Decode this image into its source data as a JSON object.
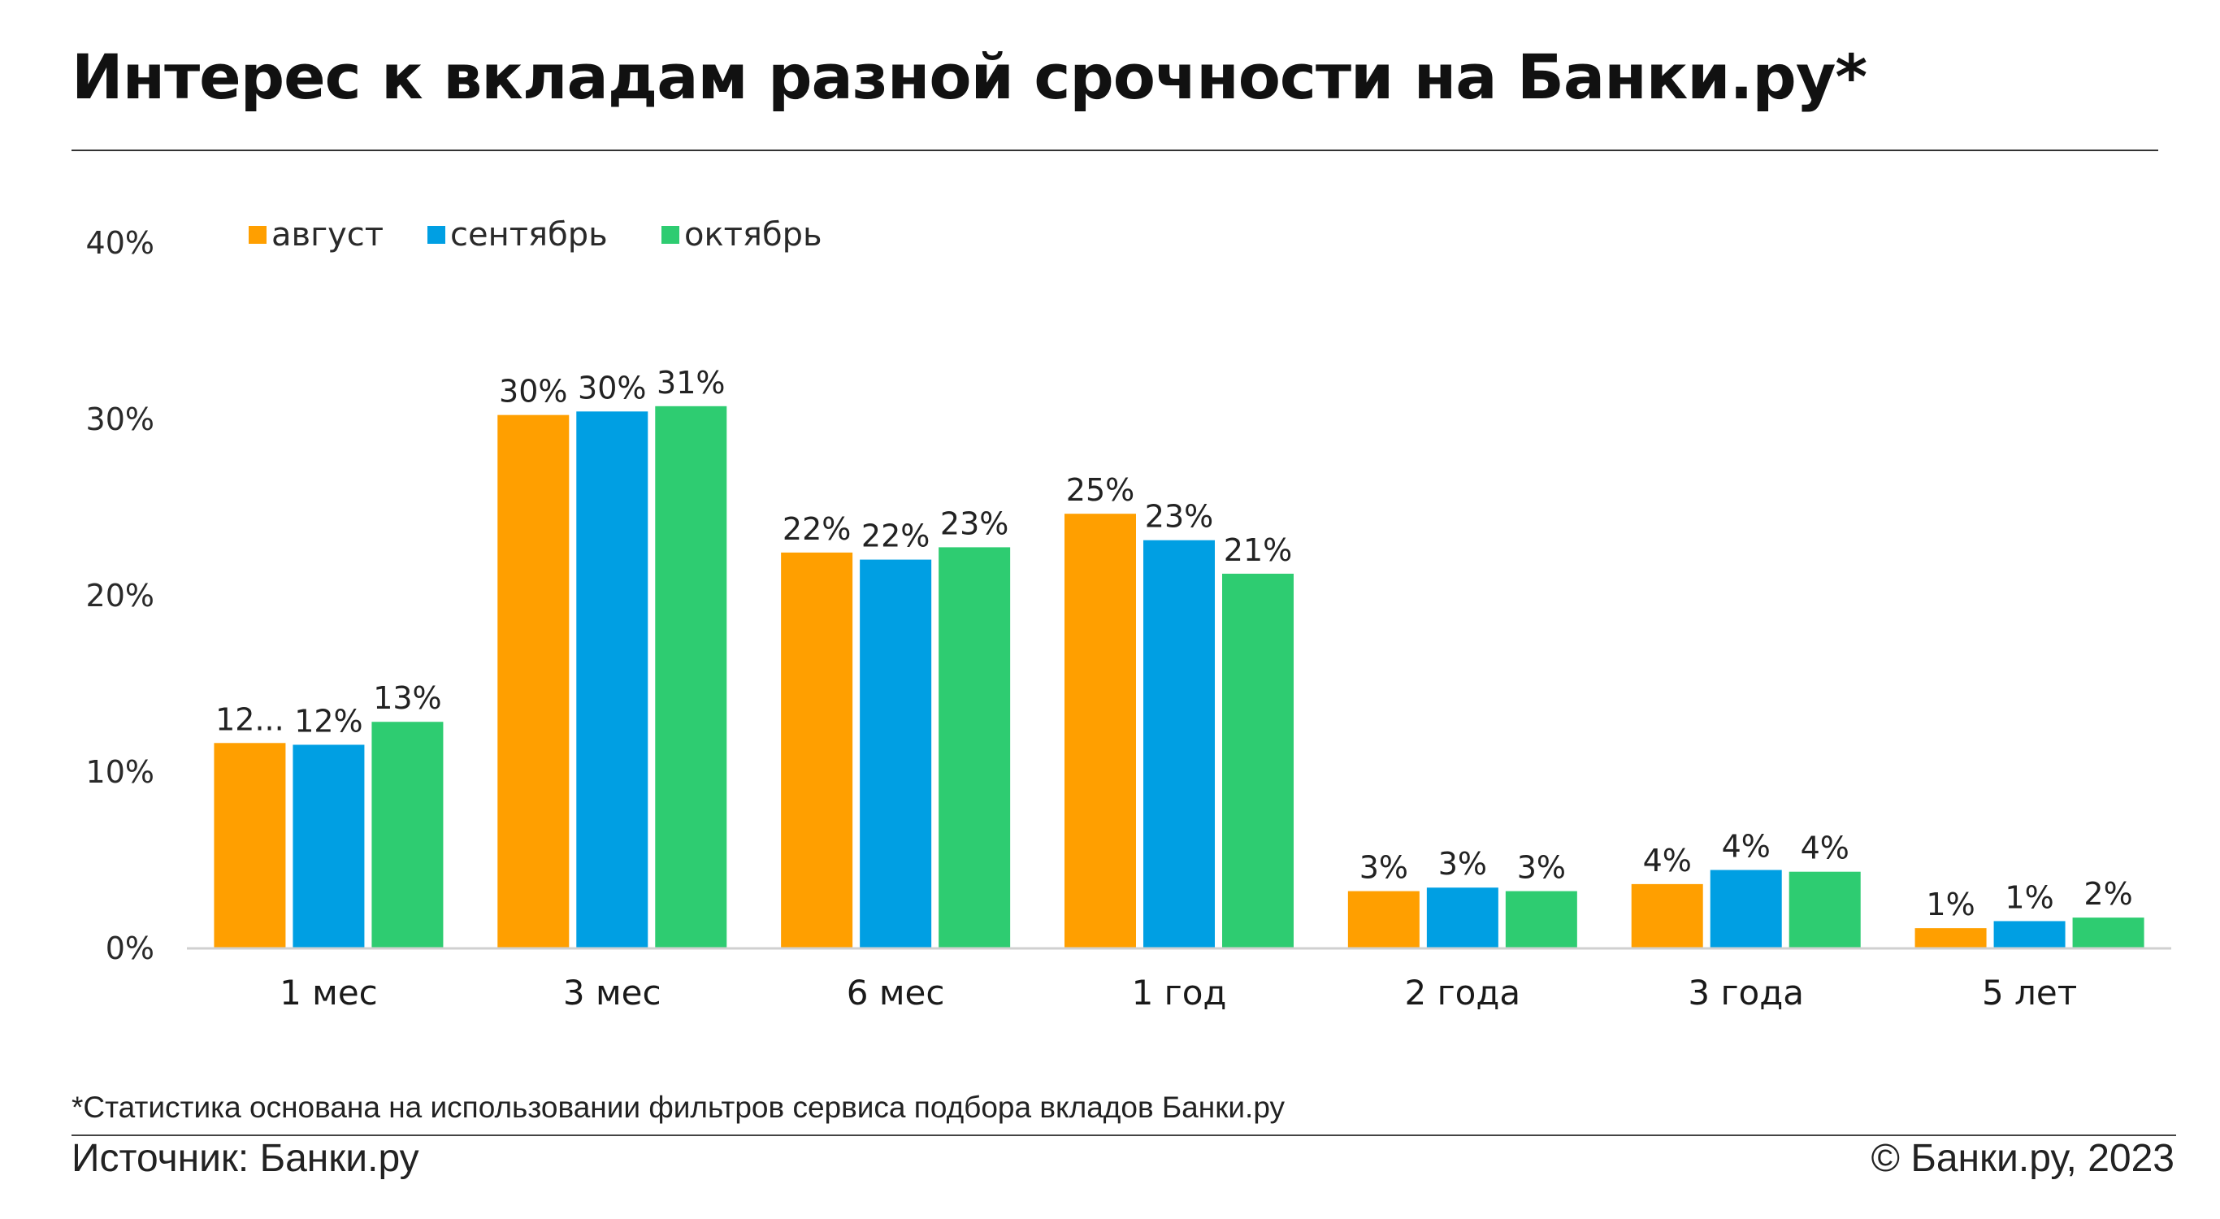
{
  "header": {
    "title": "Интерес к вкладам разной срочности на Банки.ру*"
  },
  "footer": {
    "footnote": "*Статистика основана на использовании фильтров сервиса подбора вкладов Банки.ру",
    "source": "Источник: Банки.ру",
    "copyright": "© Банки.ру, 2023"
  },
  "chart_data": {
    "type": "bar",
    "categories": [
      "1 мес",
      "3 мес",
      "6 мес",
      "1 год",
      "2 года",
      "3 года",
      "5 лет"
    ],
    "series": [
      {
        "name": "август",
        "color": "#FF9F00",
        "values": [
          11.6,
          30.2,
          22.4,
          24.6,
          3.2,
          3.6,
          1.1
        ],
        "labels": [
          "12...",
          "30%",
          "22%",
          "25%",
          "3%",
          "4%",
          "1%"
        ]
      },
      {
        "name": "сентябрь",
        "color": "#009FE3",
        "values": [
          11.5,
          30.4,
          22.0,
          23.1,
          3.4,
          4.4,
          1.5
        ],
        "labels": [
          "12%",
          "30%",
          "22%",
          "23%",
          "3%",
          "4%",
          "1%"
        ]
      },
      {
        "name": "октябрь",
        "color": "#2ECC71",
        "values": [
          12.8,
          30.7,
          22.7,
          21.2,
          3.2,
          4.3,
          1.7
        ],
        "labels": [
          "13%",
          "31%",
          "23%",
          "21%",
          "3%",
          "4%",
          "2%"
        ]
      }
    ],
    "ylim": [
      0,
      40
    ],
    "yticks": [
      {
        "value": 0,
        "label": "0%"
      },
      {
        "value": 10,
        "label": "10%"
      },
      {
        "value": 20,
        "label": "20%"
      },
      {
        "value": 30,
        "label": "30%"
      },
      {
        "value": 40,
        "label": "40%"
      }
    ],
    "grid": false,
    "legend": "top-left",
    "xlabel": "",
    "ylabel": ""
  }
}
